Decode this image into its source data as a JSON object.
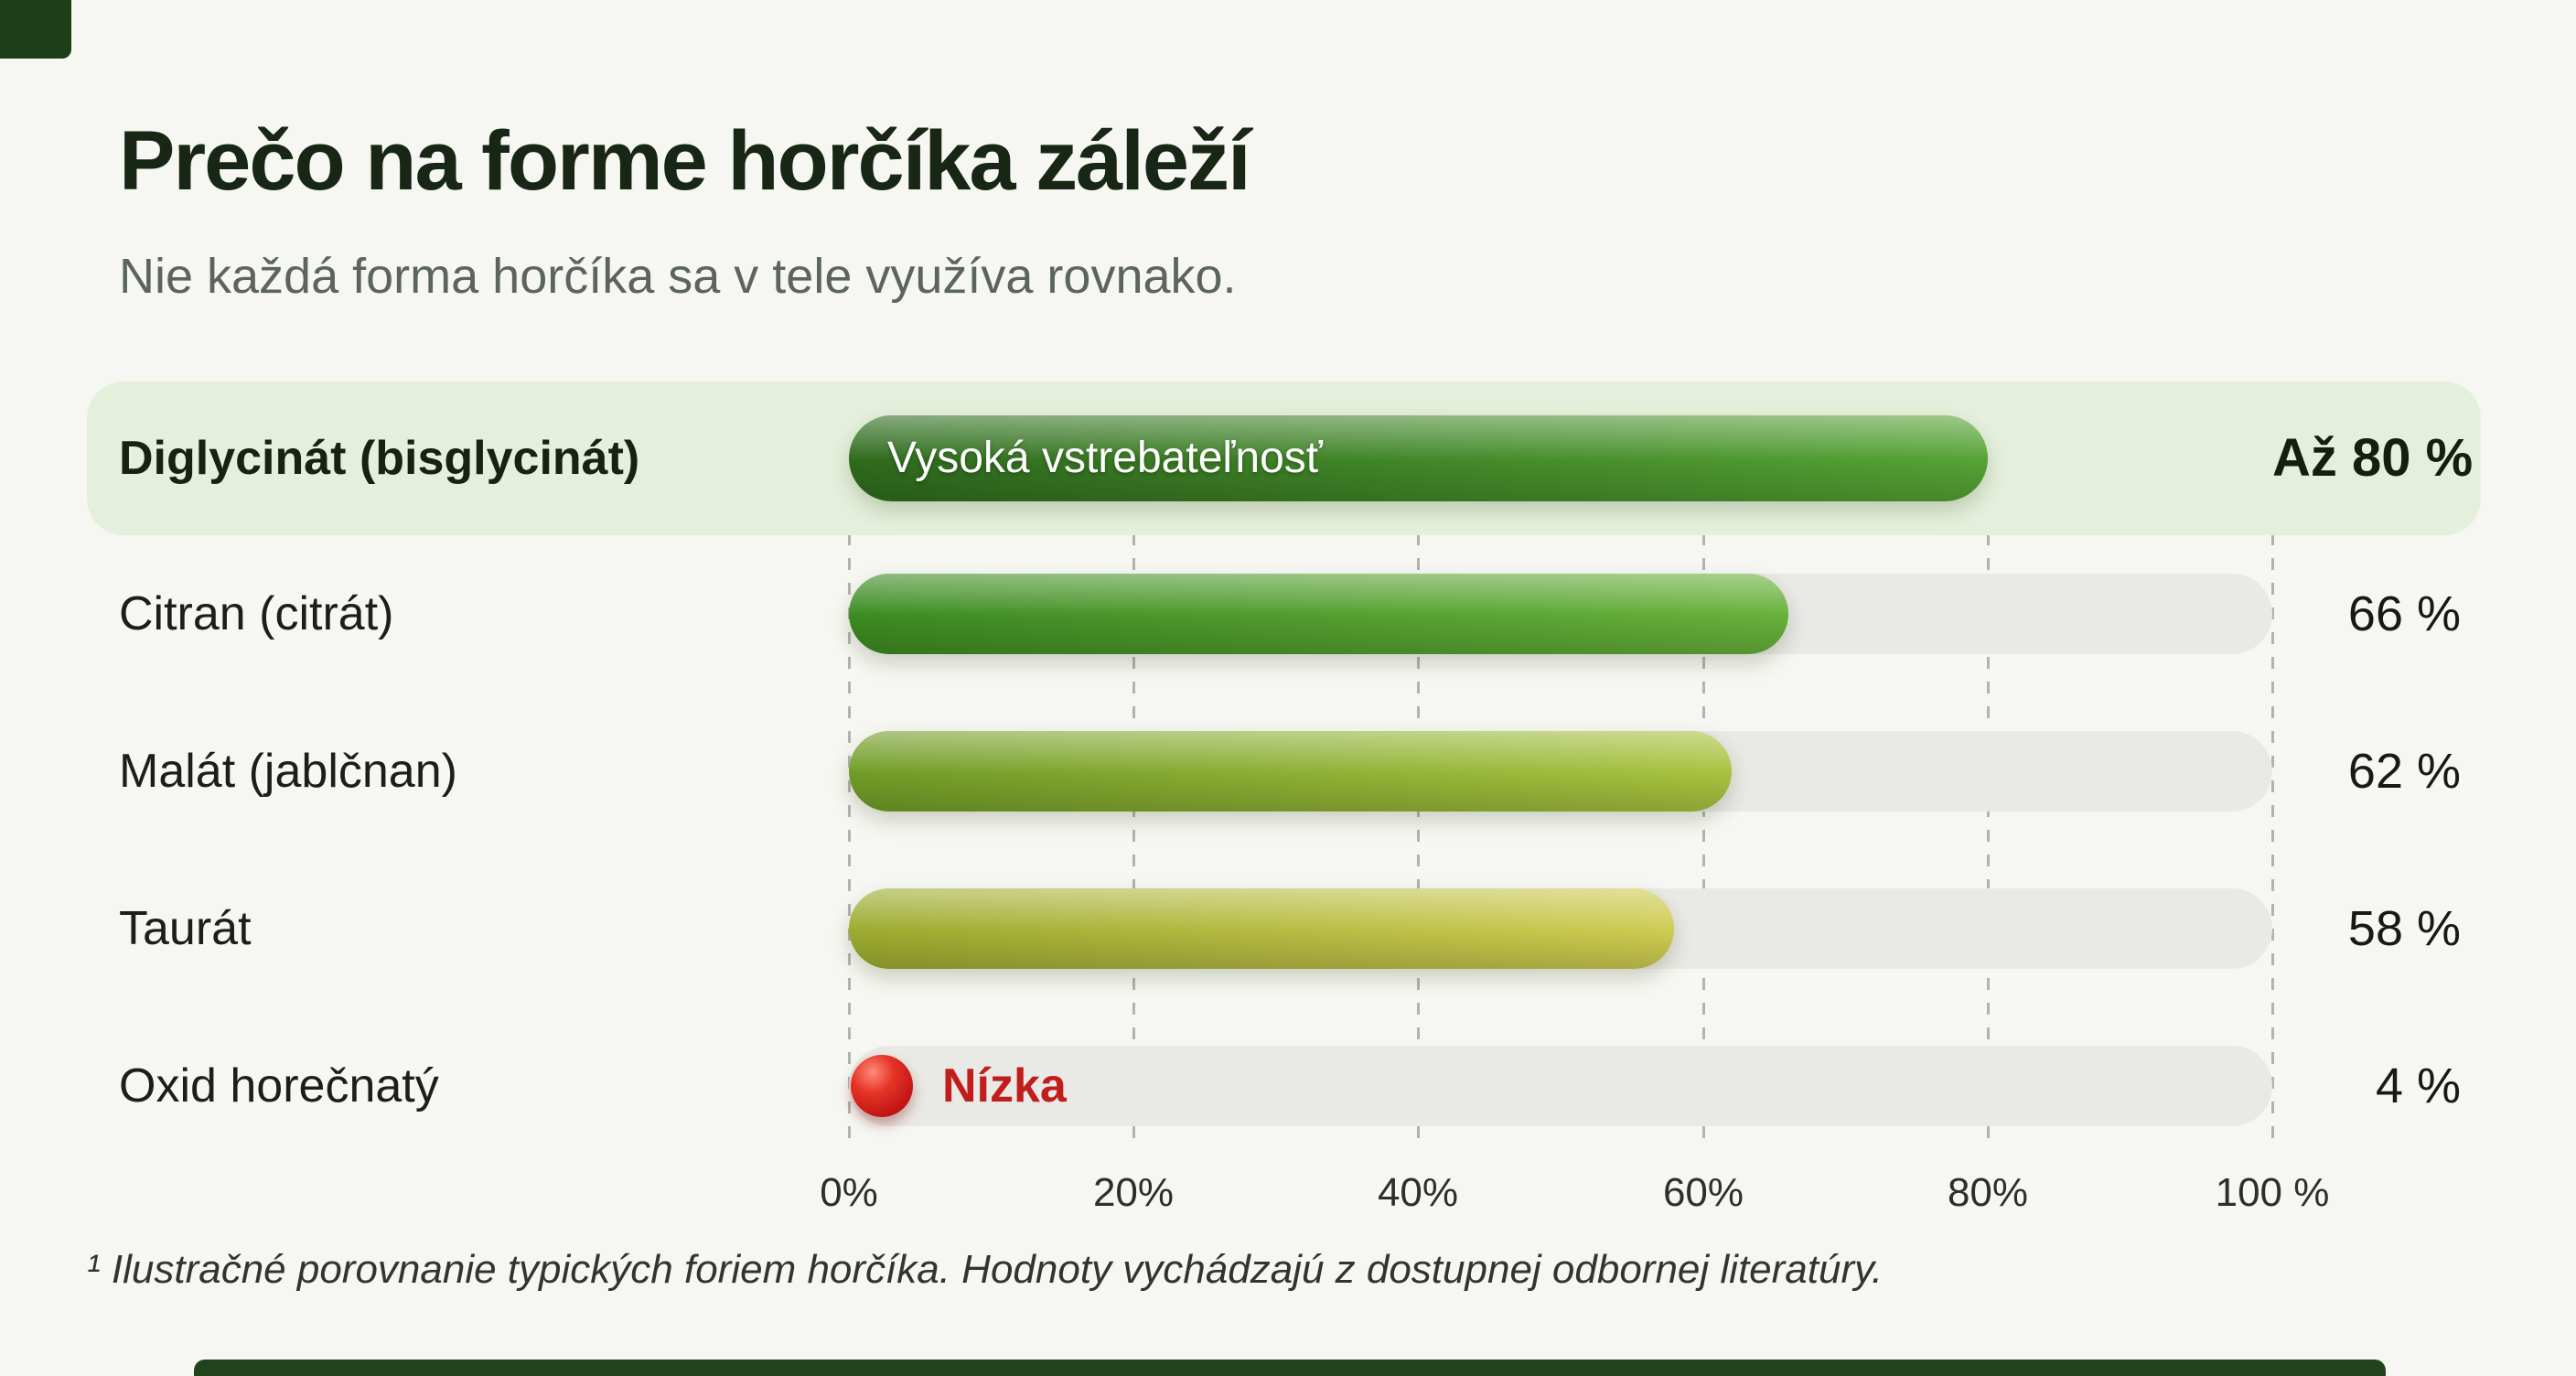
{
  "page": {
    "title": "Prečo na forme horčíka záleží",
    "subtitle": "Nie každá forma horčíka sa v tele využíva rovnako.",
    "footnote": "¹ Ilustračné porovnanie typických foriem horčíka. Hodnoty vychádzajú z dostupnej odbornej literatúry."
  },
  "colors": {
    "background": "#f6f7f2",
    "highlight_row_bg": "#e5f0dc",
    "track": "#e9e9e5",
    "title_text": "#182615",
    "low_red": "#c21d1d",
    "footer_strip": "#21431c"
  },
  "chart_data": {
    "type": "bar",
    "orientation": "horizontal",
    "title": "Prečo na forme horčíka záleží",
    "subtitle": "Nie každá forma horčíka sa v tele využíva rovnako.",
    "xlim": [
      0,
      100
    ],
    "x_ticks": [
      "0%",
      "20%",
      "40%",
      "60%",
      "80%",
      "100 %"
    ],
    "grid": "vertical-dashed",
    "legend": "none",
    "rows": [
      {
        "label": "Diglycinát (bisglycinát)",
        "value": 80,
        "display_value": "Až 80 %",
        "bar_text": "Vysoká vstrebateľnosť",
        "highlighted": true,
        "color_start": "#2e6b1d",
        "color_end": "#55a334"
      },
      {
        "label": "Citran (citrát)",
        "value": 66,
        "display_value": "66 %",
        "color_start": "#3c8a21",
        "color_end": "#67b13a"
      },
      {
        "label": "Malát (jablčnan)",
        "value": 62,
        "display_value": "62 %",
        "color_start": "#709c27",
        "color_end": "#a9c23f"
      },
      {
        "label": "Taurát",
        "value": 58,
        "display_value": "58 %",
        "color_start": "#9cab2f",
        "color_end": "#cfcb52"
      },
      {
        "label": "Oxid horečnatý",
        "value": 4,
        "display_value": "4 %",
        "marker": "red-dot",
        "marker_text": "Nízka",
        "marker_color": "#d32323",
        "marker_text_color": "#c21d1d"
      }
    ]
  }
}
